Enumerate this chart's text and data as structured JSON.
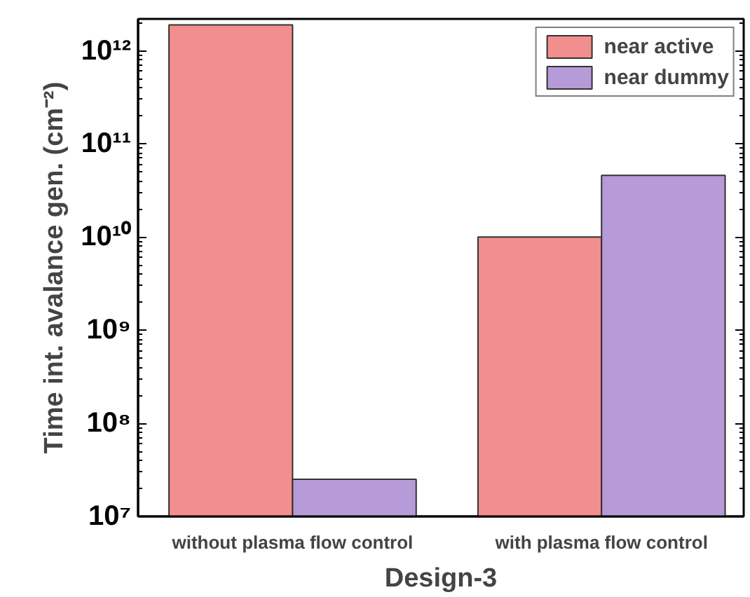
{
  "chart_data": {
    "type": "bar",
    "xlabel": "Design-3",
    "ylabel": "Time int. avalance gen. (cm⁻²)",
    "categories": [
      "without plasma flow control",
      "with plasma flow control"
    ],
    "series": [
      {
        "name": "near active",
        "color": "#f28e8e",
        "values": [
          1900000000000.0,
          10000000000.0
        ]
      },
      {
        "name": "near dummy",
        "color": "#b79ad8",
        "values": [
          25000000.0,
          46000000000.0
        ]
      }
    ],
    "log": true,
    "ylim": [
      10000000.0,
      2200000000000.0
    ],
    "yticks": [
      {
        "value": 10000000.0,
        "label": "10⁷"
      },
      {
        "value": 100000000.0,
        "label": "10⁸"
      },
      {
        "value": 1000000000.0,
        "label": "10⁹"
      },
      {
        "value": 10000000000.0,
        "label": "10¹⁰"
      },
      {
        "value": 100000000000.0,
        "label": "10¹¹"
      },
      {
        "value": 1000000000000.0,
        "label": "10¹²"
      }
    ],
    "grid": false,
    "legend": "top right"
  }
}
